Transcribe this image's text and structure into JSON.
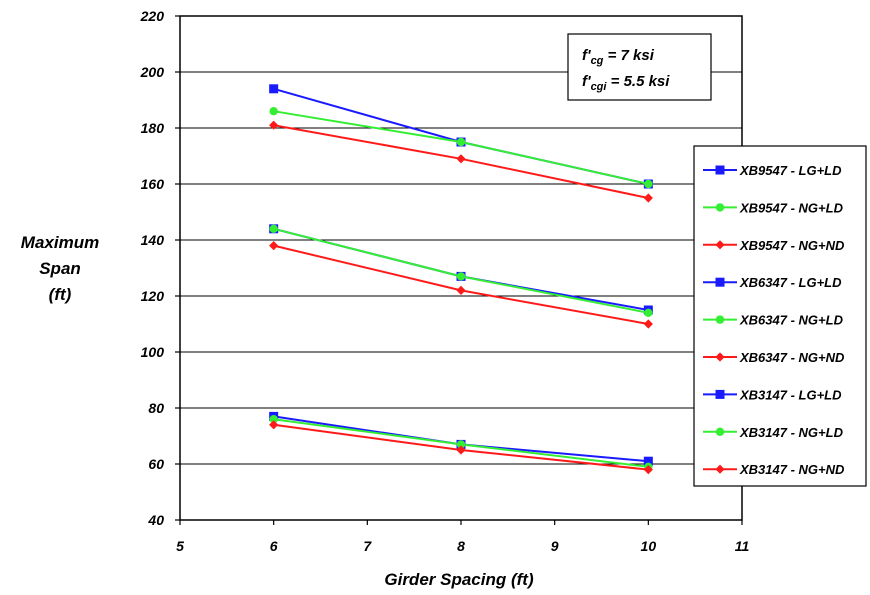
{
  "chart_data": {
    "type": "line",
    "xlabel": "Girder Spacing (ft)",
    "ylabel": [
      "Maximum",
      "Span",
      "(ft)"
    ],
    "xlim": [
      5,
      11
    ],
    "ylim": [
      40,
      220
    ],
    "xticks": [
      "5",
      "6",
      "7",
      "8",
      "9",
      "10",
      "11"
    ],
    "yticks": [
      "40",
      "60",
      "80",
      "100",
      "120",
      "140",
      "160",
      "180",
      "200",
      "220"
    ],
    "grid": "horizontal",
    "legend_position": "right",
    "annotation": {
      "line1": {
        "base": "f'",
        "sub": "cg",
        "rest": " = 7 ksi"
      },
      "line2": {
        "base": "f'",
        "sub": "cgi",
        "rest": " = 5.5 ksi"
      }
    },
    "colors": {
      "blue": "#0000ff",
      "green": "#00ff00",
      "red": "#ff0000"
    },
    "series": [
      {
        "name": "XB9547 - LG+LD",
        "color": "#1a1aff",
        "marker": "square",
        "x": [
          6,
          8,
          10
        ],
        "y": [
          194,
          175,
          160
        ]
      },
      {
        "name": "XB9547 - NG+LD",
        "color": "#33ee33",
        "marker": "circle",
        "x": [
          6,
          8,
          10
        ],
        "y": [
          186,
          175,
          160
        ]
      },
      {
        "name": "XB9547 - NG+ND",
        "color": "#ff1a1a",
        "marker": "diamond",
        "x": [
          6,
          8,
          10
        ],
        "y": [
          181,
          169,
          155
        ]
      },
      {
        "name": "XB6347 - LG+LD",
        "color": "#1a1aff",
        "marker": "square",
        "x": [
          6,
          8,
          10
        ],
        "y": [
          144,
          127,
          115
        ]
      },
      {
        "name": "XB6347 - NG+LD",
        "color": "#33ee33",
        "marker": "circle",
        "x": [
          6,
          8,
          10
        ],
        "y": [
          144,
          127,
          114
        ]
      },
      {
        "name": "XB6347 - NG+ND",
        "color": "#ff1a1a",
        "marker": "diamond",
        "x": [
          6,
          8,
          10
        ],
        "y": [
          138,
          122,
          110
        ]
      },
      {
        "name": "XB3147 - LG+LD",
        "color": "#1a1aff",
        "marker": "square",
        "x": [
          6,
          8,
          10
        ],
        "y": [
          77,
          67,
          61
        ]
      },
      {
        "name": "XB3147 - NG+LD",
        "color": "#33ee33",
        "marker": "circle",
        "x": [
          6,
          8,
          10
        ],
        "y": [
          76,
          67,
          59
        ]
      },
      {
        "name": "XB3147 - NG+ND",
        "color": "#ff1a1a",
        "marker": "diamond",
        "x": [
          6,
          8,
          10
        ],
        "y": [
          74,
          65,
          58
        ]
      }
    ]
  }
}
